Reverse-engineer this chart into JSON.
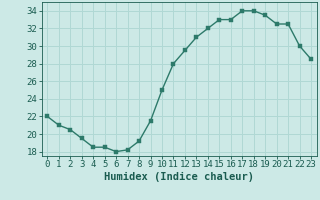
{
  "x": [
    0,
    1,
    2,
    3,
    4,
    5,
    6,
    7,
    8,
    9,
    10,
    11,
    12,
    13,
    14,
    15,
    16,
    17,
    18,
    19,
    20,
    21,
    22,
    23
  ],
  "y": [
    22,
    21,
    20.5,
    19.5,
    18.5,
    18.5,
    18,
    18.2,
    19.2,
    21.5,
    25,
    28,
    29.5,
    31,
    32,
    33,
    33,
    34,
    34,
    33.5,
    32.5,
    32.5,
    30,
    28.5
  ],
  "line_color": "#2d7a6a",
  "marker_color": "#2d7a6a",
  "bg_color": "#cce9e6",
  "grid_color": "#b0d8d4",
  "xlabel": "Humidex (Indice chaleur)",
  "ylim": [
    17.5,
    35
  ],
  "xlim": [
    -0.5,
    23.5
  ],
  "yticks": [
    18,
    20,
    22,
    24,
    26,
    28,
    30,
    32,
    34
  ],
  "xticks": [
    0,
    1,
    2,
    3,
    4,
    5,
    6,
    7,
    8,
    9,
    10,
    11,
    12,
    13,
    14,
    15,
    16,
    17,
    18,
    19,
    20,
    21,
    22,
    23
  ],
  "font_color": "#1a5c50",
  "font_size": 6.5,
  "marker_size": 2.5,
  "line_width": 1.0
}
